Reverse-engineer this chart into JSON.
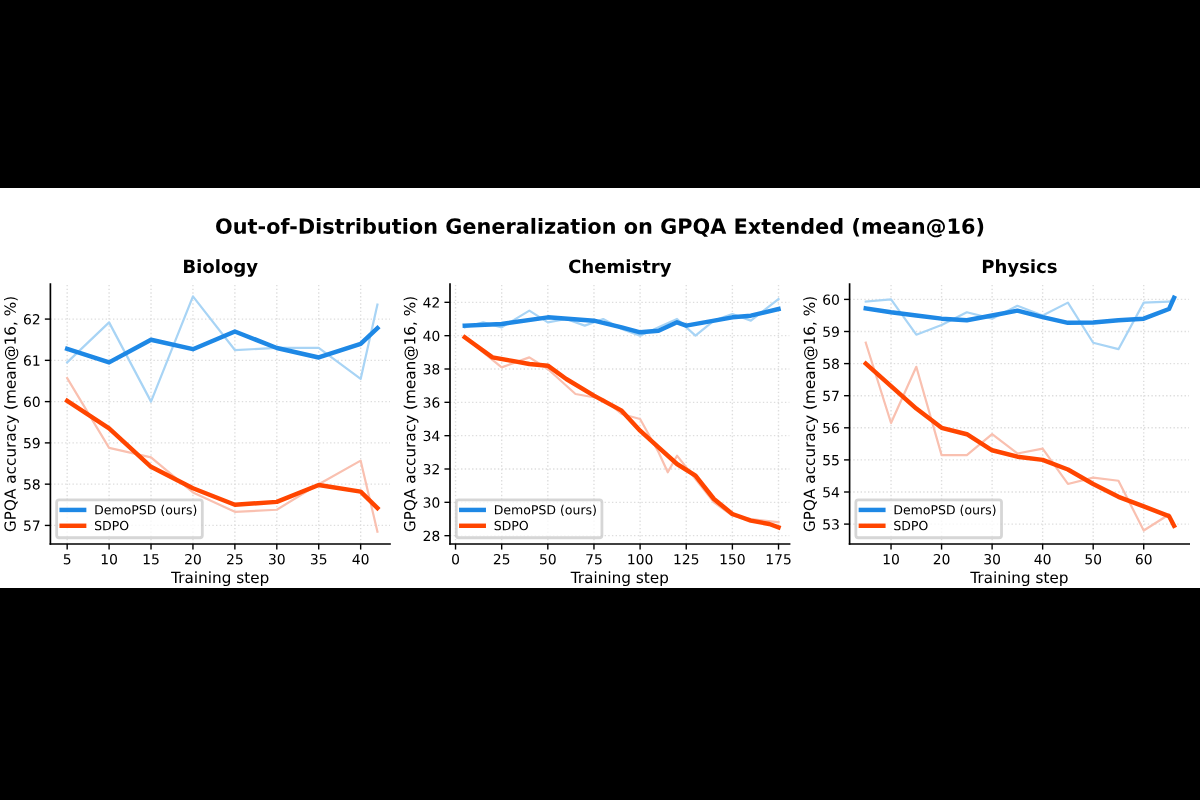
{
  "chart_data": [
    {
      "type": "line",
      "title": "Biology",
      "xlabel": "Training step",
      "ylabel": "GPQA accuracy (mean@16, %)",
      "annotations": [
        "Out-of-Distribution Generalization on GPQA Extended (mean@16)"
      ],
      "xlim": [
        3,
        43.5
      ],
      "ylim": [
        56.55,
        62.85
      ],
      "xticks": [
        5,
        10,
        15,
        20,
        25,
        30,
        35,
        40
      ],
      "yticks": [
        57,
        58,
        59,
        60,
        61,
        62
      ],
      "grid": true,
      "legend": "bottom left",
      "marker": "none",
      "line_style": "solid",
      "series": [
        {
          "color": "#a8d4f5",
          "x": [
            5,
            10,
            15,
            20,
            25,
            30,
            35,
            40,
            42
          ],
          "values": [
            60.95,
            61.92,
            60.0,
            62.55,
            61.25,
            61.3,
            61.3,
            60.55,
            62.35
          ]
        },
        {
          "color": "#f9c0b0",
          "x": [
            5,
            10,
            15,
            20,
            25,
            30,
            35,
            40,
            42
          ],
          "values": [
            60.57,
            58.88,
            58.65,
            57.8,
            57.33,
            57.38,
            58.0,
            58.57,
            56.85
          ]
        },
        {
          "name": "DemoPSD (ours)",
          "color": "#1e88e5",
          "x": [
            5,
            10,
            15,
            20,
            25,
            30,
            35,
            40,
            42
          ],
          "values": [
            61.28,
            60.95,
            61.5,
            61.27,
            61.7,
            61.3,
            61.07,
            61.4,
            61.78
          ]
        },
        {
          "name": "SDPO",
          "color": "#ff4500",
          "x": [
            5,
            10,
            15,
            20,
            25,
            30,
            35,
            40,
            42
          ],
          "values": [
            60.02,
            59.35,
            58.42,
            57.9,
            57.5,
            57.57,
            57.98,
            57.82,
            57.42
          ]
        }
      ]
    },
    {
      "type": "line",
      "title": "Chemistry",
      "xlabel": "Training step",
      "ylabel": "GPQA accuracy (mean@16, %)",
      "xlim": [
        -3,
        181
      ],
      "ylim": [
        27.5,
        43.1
      ],
      "xticks": [
        0,
        25,
        50,
        75,
        100,
        125,
        150,
        175
      ],
      "yticks": [
        28,
        30,
        32,
        34,
        36,
        38,
        40,
        42
      ],
      "grid": true,
      "legend": "bottom left",
      "marker": "none",
      "line_style": "solid",
      "series": [
        {
          "color": "#a8d4f5",
          "x": [
            5,
            15,
            25,
            40,
            50,
            60,
            70,
            80,
            90,
            100,
            110,
            120,
            130,
            140,
            150,
            160,
            175
          ],
          "values": [
            40.5,
            40.8,
            40.5,
            41.5,
            40.8,
            41.0,
            40.6,
            41.0,
            40.4,
            40.0,
            40.5,
            41.0,
            40.0,
            40.9,
            41.3,
            40.9,
            42.2
          ]
        },
        {
          "color": "#f9c0b0",
          "x": [
            5,
            15,
            25,
            40,
            50,
            65,
            80,
            90,
            100,
            110,
            115,
            120,
            130,
            140,
            150,
            160,
            175
          ],
          "values": [
            39.9,
            39.0,
            38.1,
            38.7,
            38.0,
            36.5,
            36.2,
            35.3,
            35.0,
            33.0,
            31.8,
            32.8,
            31.4,
            30.0,
            29.2,
            29.0,
            28.8
          ]
        },
        {
          "name": "DemoPSD (ours)",
          "color": "#1e88e5",
          "x": [
            5,
            25,
            50,
            75,
            90,
            100,
            110,
            120,
            125,
            150,
            160,
            175
          ],
          "values": [
            40.6,
            40.7,
            41.1,
            40.9,
            40.5,
            40.2,
            40.3,
            40.8,
            40.6,
            41.1,
            41.2,
            41.6
          ]
        },
        {
          "name": "SDPO",
          "color": "#ff4500",
          "x": [
            5,
            10,
            20,
            30,
            40,
            50,
            60,
            75,
            90,
            100,
            110,
            120,
            130,
            140,
            150,
            160,
            170,
            175
          ],
          "values": [
            39.9,
            39.5,
            38.7,
            38.5,
            38.3,
            38.2,
            37.4,
            36.4,
            35.5,
            34.3,
            33.3,
            32.3,
            31.6,
            30.2,
            29.3,
            28.9,
            28.7,
            28.5
          ]
        }
      ]
    },
    {
      "type": "line",
      "title": "Physics",
      "xlabel": "Training step",
      "ylabel": "GPQA accuracy (mean@16, %)",
      "xlim": [
        1.8,
        69
      ],
      "ylim": [
        52.38,
        60.48
      ],
      "xticks": [
        10,
        20,
        30,
        40,
        50,
        60
      ],
      "yticks": [
        53,
        54,
        55,
        56,
        57,
        58,
        59,
        60
      ],
      "grid": true,
      "legend": "bottom left",
      "marker": "none",
      "line_style": "solid",
      "series": [
        {
          "color": "#a8d4f5",
          "x": [
            5,
            10,
            15,
            20,
            25,
            30,
            35,
            40,
            45,
            50,
            55,
            60,
            65,
            66
          ],
          "values": [
            59.93,
            60.0,
            58.9,
            59.2,
            59.6,
            59.4,
            59.8,
            59.5,
            59.9,
            58.65,
            58.45,
            59.9,
            59.93,
            60.0
          ]
        },
        {
          "color": "#f9c0b0",
          "x": [
            5,
            10,
            15,
            20,
            25,
            30,
            35,
            40,
            45,
            50,
            55,
            60,
            65,
            66
          ],
          "values": [
            58.65,
            56.15,
            57.9,
            55.15,
            55.15,
            55.8,
            55.2,
            55.35,
            54.25,
            54.45,
            54.35,
            52.8,
            53.3,
            52.95
          ]
        },
        {
          "name": "DemoPSD (ours)",
          "color": "#1e88e5",
          "x": [
            5,
            10,
            15,
            20,
            25,
            30,
            35,
            40,
            45,
            50,
            55,
            60,
            65,
            66
          ],
          "values": [
            59.72,
            59.6,
            59.5,
            59.4,
            59.35,
            59.5,
            59.65,
            59.45,
            59.27,
            59.28,
            59.35,
            59.4,
            59.7,
            60.05
          ]
        },
        {
          "name": "SDPO",
          "color": "#ff4500",
          "x": [
            5,
            10,
            15,
            20,
            25,
            30,
            35,
            40,
            45,
            50,
            55,
            60,
            65,
            66
          ],
          "values": [
            58.0,
            57.3,
            56.6,
            56.0,
            55.8,
            55.3,
            55.1,
            55.0,
            54.7,
            54.25,
            53.85,
            53.55,
            53.25,
            52.95
          ]
        }
      ]
    }
  ]
}
